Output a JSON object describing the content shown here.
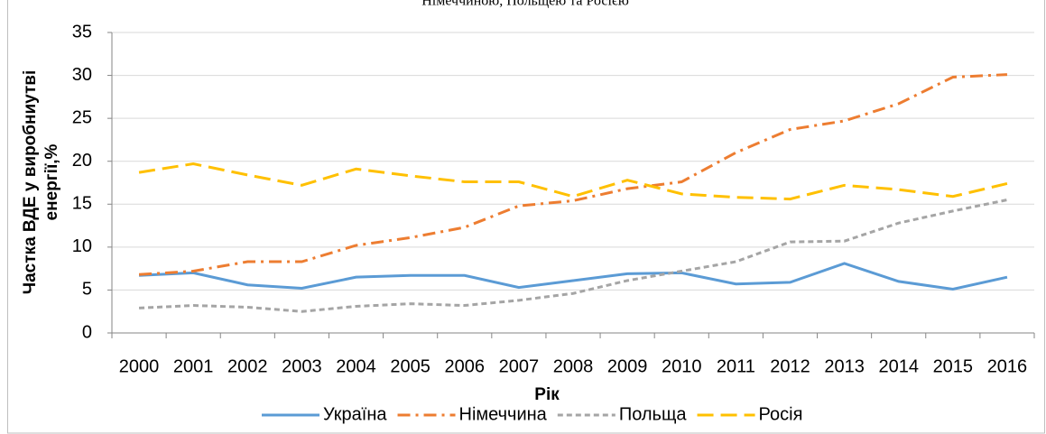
{
  "chart_data": {
    "type": "line",
    "title": "Німеччиною, Польщею та Росією",
    "ylabel": [
      "Частка ВДЕ у виробниутві",
      "енергії,%"
    ],
    "xlabel": "Рік",
    "categories": [
      "2000",
      "2001",
      "2002",
      "2003",
      "2004",
      "2005",
      "2006",
      "2007",
      "2008",
      "2009",
      "2010",
      "2011",
      "2012",
      "2013",
      "2014",
      "2015",
      "2016"
    ],
    "series": [
      {
        "name": "Україна",
        "color": "#5b9bd5",
        "dash": "solid",
        "values": [
          6.7,
          7.0,
          5.6,
          5.2,
          6.5,
          6.7,
          6.7,
          5.3,
          6.1,
          6.9,
          7.0,
          5.7,
          5.9,
          8.1,
          6.0,
          5.1,
          6.5
        ]
      },
      {
        "name": "Німеччина",
        "color": "#ed7d31",
        "dash": "dashdot",
        "values": [
          6.8,
          7.2,
          8.3,
          8.3,
          10.2,
          11.1,
          12.3,
          14.8,
          15.4,
          16.8,
          17.6,
          21.0,
          23.7,
          24.7,
          26.7,
          29.8,
          30.1
        ]
      },
      {
        "name": "Польща",
        "color": "#a5a5a5",
        "dash": "dash",
        "values": [
          2.9,
          3.2,
          3.0,
          2.5,
          3.1,
          3.4,
          3.2,
          3.8,
          4.6,
          6.1,
          7.2,
          8.3,
          10.6,
          10.7,
          12.8,
          14.2,
          15.5
        ]
      },
      {
        "name": "Росія",
        "color": "#ffc000",
        "dash": "longdash",
        "values": [
          18.7,
          19.7,
          18.4,
          17.2,
          19.1,
          18.3,
          17.6,
          17.6,
          15.9,
          17.8,
          16.2,
          15.8,
          15.6,
          17.2,
          16.7,
          15.9,
          17.4
        ]
      }
    ],
    "ylim": [
      0,
      35
    ],
    "yticks": [
      0,
      5,
      10,
      15,
      20,
      25,
      30,
      35
    ],
    "grid": true,
    "legend": "bottom"
  }
}
